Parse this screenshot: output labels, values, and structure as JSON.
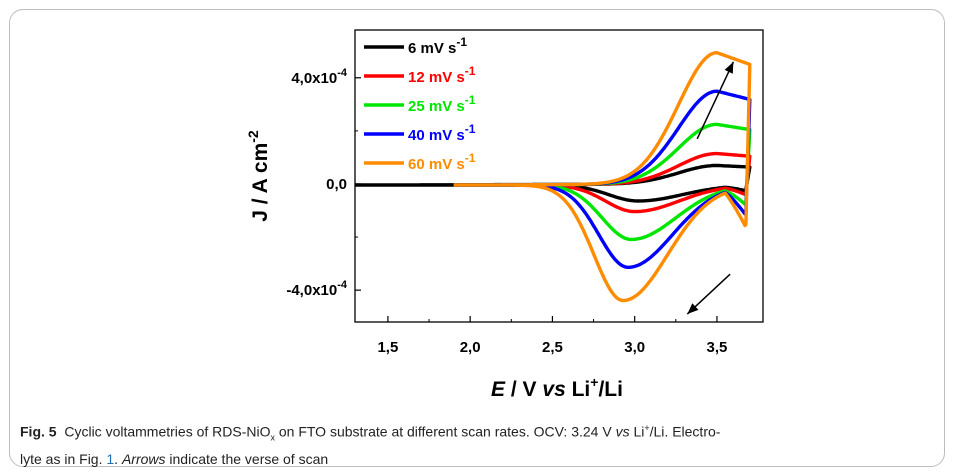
{
  "caption": {
    "label": "Fig. 5",
    "t1": "Cyclic voltammetries of RDS-NiO",
    "sub": "x",
    "t2": " on FTO substrate at different scan rates. OCV: 3.24 V ",
    "vs": "vs",
    "t3": " Li",
    "sup": "+",
    "t4": "/Li. Electro-",
    "t5": "lyte as in Fig. ",
    "fig_ref": "1",
    "t6": ". ",
    "arrows": "Arrows",
    "t7": " indicate the verse of scan"
  },
  "chart_data": {
    "type": "line",
    "x_axis": {
      "label_E": "E",
      "label_mid": " / V ",
      "label_vs": "vs",
      "label_li": " Li",
      "label_sup": "+",
      "label_end": "/Li",
      "range": [
        1.3,
        3.78
      ],
      "ticks": [
        {
          "v": 1.5,
          "label": "1,5"
        },
        {
          "v": 2.0,
          "label": "2,0"
        },
        {
          "v": 2.5,
          "label": "2,5"
        },
        {
          "v": 3.0,
          "label": "3,0"
        },
        {
          "v": 3.5,
          "label": "3,5"
        }
      ]
    },
    "y_axis": {
      "label_main": "J / A cm",
      "label_sup": "-2",
      "range": [
        -0.00052,
        0.00058
      ],
      "ticks": [
        {
          "v": 0.0004,
          "label": "4,0x10",
          "exp": "-4"
        },
        {
          "v": 0.0,
          "label": "0,0",
          "exp": ""
        },
        {
          "v": -0.0004,
          "label": "-4,0x10",
          "exp": "-4"
        }
      ]
    },
    "legend_position": "top-left",
    "series": [
      {
        "name": "6 mV s",
        "sup": "-1",
        "color": "#000000",
        "peak_anodic": 7e-05,
        "peak_cathodic": -6e-05,
        "cathodic_E": 3.02,
        "x_start": 1.3
      },
      {
        "name": "12 mV s",
        "sup": "-1",
        "color": "#ff0000",
        "peak_anodic": 0.000115,
        "peak_cathodic": -0.0001,
        "cathodic_E": 3.0,
        "x_start": 1.9
      },
      {
        "name": "25 mV s",
        "sup": "-1",
        "color": "#00e600",
        "peak_anodic": 0.000225,
        "peak_cathodic": -0.000205,
        "cathodic_E": 2.98,
        "x_start": 1.9
      },
      {
        "name": "40 mV s",
        "sup": "-1",
        "color": "#0000ff",
        "peak_anodic": 0.00035,
        "peak_cathodic": -0.00031,
        "cathodic_E": 2.96,
        "x_start": 1.9
      },
      {
        "name": "60 mV s",
        "sup": "-1",
        "color": "#ff8c00",
        "peak_anodic": 0.000495,
        "peak_cathodic": -0.000435,
        "cathodic_E": 2.93,
        "x_start": 1.9
      }
    ],
    "E_vertex": 3.7,
    "arrows": [
      {
        "from": [
          3.38,
          0.00017
        ],
        "to": [
          3.6,
          0.00046
        ]
      },
      {
        "from": [
          3.58,
          -0.00034
        ],
        "to": [
          3.32,
          -0.00049
        ]
      }
    ]
  }
}
